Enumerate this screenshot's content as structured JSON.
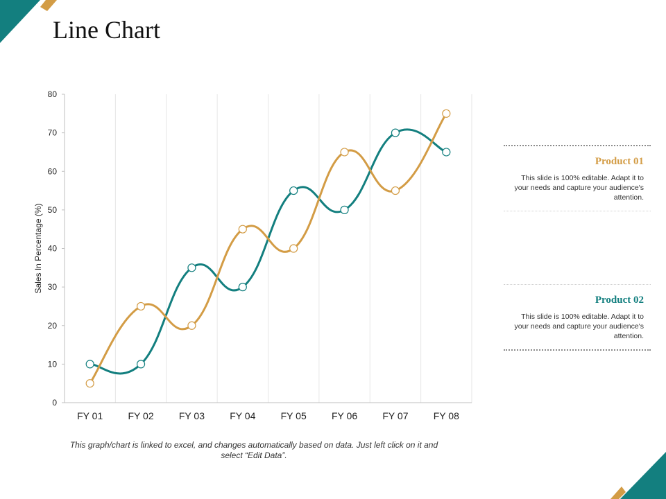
{
  "title": "Line Chart",
  "colors": {
    "teal": "#137f7f",
    "gold": "#d39c45",
    "grid": "#e6e6e6"
  },
  "chart_data": {
    "type": "line",
    "categories": [
      "FY 01",
      "FY 02",
      "FY 03",
      "FY 04",
      "FY 05",
      "FY 06",
      "FY 07",
      "FY 08"
    ],
    "series": [
      {
        "name": "Product 02",
        "color": "#137f7f",
        "values": [
          10,
          10,
          35,
          30,
          55,
          50,
          70,
          65
        ]
      },
      {
        "name": "Product 01",
        "color": "#d39c45",
        "values": [
          5,
          25,
          20,
          45,
          40,
          65,
          55,
          75
        ]
      }
    ],
    "ylabel": "Sales In Percentage (%)",
    "xlabel": "",
    "ylim": [
      0,
      80
    ],
    "yticks": [
      0,
      10,
      20,
      30,
      40,
      50,
      60,
      70,
      80
    ],
    "grid": "vertical"
  },
  "legend": [
    {
      "title": "Product 01",
      "color": "#d39c45",
      "desc": "This slide is 100% editable. Adapt it to your needs and capture your audience's attention."
    },
    {
      "title": "Product 02",
      "color": "#137f7f",
      "desc": "This slide is 100% editable. Adapt it to your needs and capture your audience's attention."
    }
  ],
  "footnote": "This graph/chart is linked to excel, and changes automatically based on data. Just left click on it and select “Edit Data”."
}
